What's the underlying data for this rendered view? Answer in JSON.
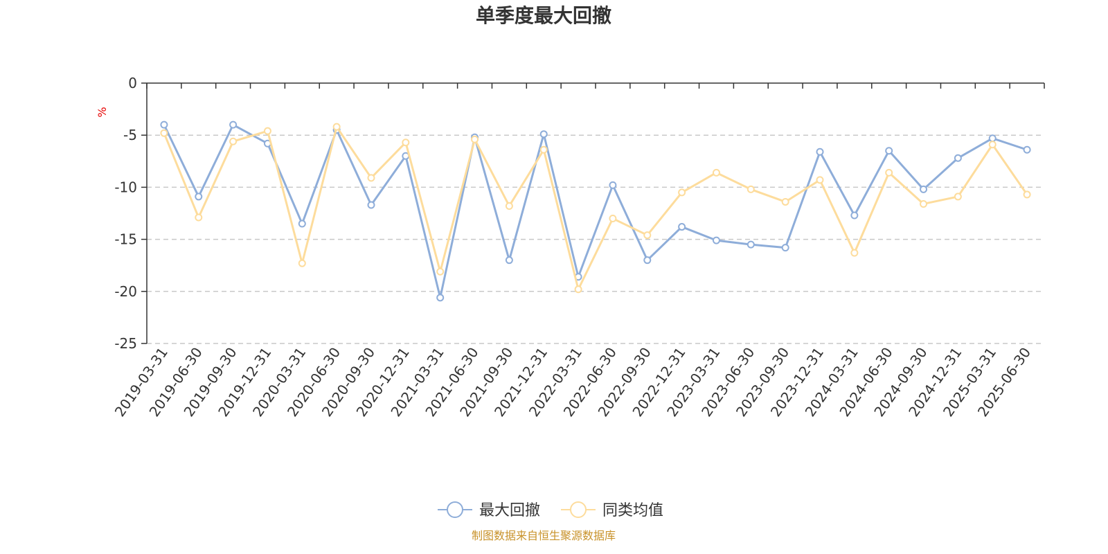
{
  "chart_data": {
    "type": "line",
    "title": "单季度最大回撤",
    "ylabel": "%",
    "ylim": [
      -25,
      0
    ],
    "yticks": [
      0,
      -5,
      -10,
      -15,
      -20,
      -25
    ],
    "grid": true,
    "legend_position": "bottom",
    "categories": [
      "2019-03-31",
      "2019-06-30",
      "2019-09-30",
      "2019-12-31",
      "2020-03-31",
      "2020-06-30",
      "2020-09-30",
      "2020-12-31",
      "2021-03-31",
      "2021-06-30",
      "2021-09-30",
      "2021-12-31",
      "2022-03-31",
      "2022-06-30",
      "2022-09-30",
      "2022-12-31",
      "2023-03-31",
      "2023-06-30",
      "2023-09-30",
      "2023-12-31",
      "2024-03-31",
      "2024-06-30",
      "2024-09-30",
      "2024-12-31",
      "2025-03-31",
      "2025-06-30"
    ],
    "series": [
      {
        "name": "最大回撤",
        "color": "#8eadd9",
        "values": [
          -4.0,
          -10.9,
          -4.0,
          -5.8,
          -13.5,
          -4.5,
          -11.7,
          -7.0,
          -20.6,
          -5.2,
          -17.0,
          -4.9,
          -18.6,
          -9.8,
          -17.0,
          -13.8,
          -15.1,
          -15.5,
          -15.8,
          -6.6,
          -12.7,
          -6.5,
          -10.2,
          -7.2,
          -5.3,
          -6.4
        ]
      },
      {
        "name": "同类均值",
        "color": "#fddc9c",
        "values": [
          -4.8,
          -12.9,
          -5.6,
          -4.6,
          -17.3,
          -4.2,
          -9.1,
          -5.7,
          -18.1,
          -5.4,
          -11.8,
          -6.4,
          -19.8,
          -13.0,
          -14.6,
          -10.5,
          -8.6,
          -10.2,
          -11.4,
          -9.3,
          -16.3,
          -8.6,
          -11.6,
          -10.9,
          -5.9,
          -10.7
        ]
      }
    ],
    "source": "制图数据来自恒生聚源数据库"
  }
}
